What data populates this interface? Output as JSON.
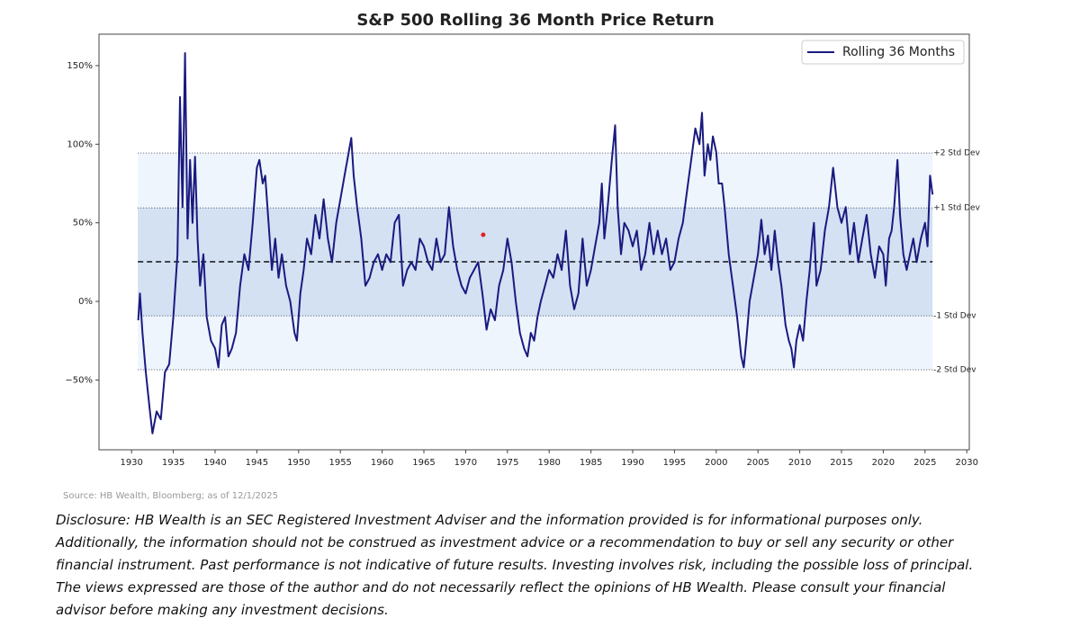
{
  "chart_data": {
    "type": "line",
    "title": "S&P 500 Rolling 36 Month Price Return",
    "x": [
      1930.8,
      1931.0,
      1931.3,
      1931.7,
      1932.2,
      1932.5,
      1933.0,
      1933.5,
      1934.0,
      1934.5,
      1935.0,
      1935.5,
      1935.8,
      1936.1,
      1936.4,
      1936.7,
      1937.0,
      1937.3,
      1937.6,
      1937.9,
      1938.2,
      1938.6,
      1939.0,
      1939.5,
      1940.0,
      1940.4,
      1940.8,
      1941.2,
      1941.6,
      1942.0,
      1942.5,
      1943.0,
      1943.5,
      1944.0,
      1944.5,
      1945.0,
      1945.3,
      1945.7,
      1946.0,
      1946.4,
      1946.8,
      1947.2,
      1947.6,
      1948.0,
      1948.5,
      1949.0,
      1949.5,
      1949.8,
      1950.2,
      1950.6,
      1951.0,
      1951.5,
      1952.0,
      1952.5,
      1953.0,
      1953.5,
      1954.0,
      1954.5,
      1955.0,
      1955.5,
      1956.0,
      1956.3,
      1956.6,
      1957.0,
      1957.5,
      1958.0,
      1958.5,
      1959.0,
      1959.5,
      1960.0,
      1960.5,
      1961.0,
      1961.5,
      1962.0,
      1962.5,
      1963.0,
      1963.5,
      1964.0,
      1964.5,
      1965.0,
      1965.5,
      1966.0,
      1966.5,
      1967.0,
      1967.5,
      1968.0,
      1968.5,
      1969.0,
      1969.5,
      1970.0,
      1970.5,
      1971.0,
      1971.5,
      1972.0,
      1972.5,
      1973.0,
      1973.5,
      1974.0,
      1974.5,
      1975.0,
      1975.5,
      1976.0,
      1976.5,
      1977.0,
      1977.4,
      1977.8,
      1978.2,
      1978.6,
      1979.0,
      1979.5,
      1980.0,
      1980.5,
      1981.0,
      1981.5,
      1982.0,
      1982.5,
      1983.0,
      1983.5,
      1984.0,
      1984.5,
      1985.0,
      1985.5,
      1986.0,
      1986.3,
      1986.6,
      1987.0,
      1987.5,
      1987.9,
      1988.2,
      1988.6,
      1989.0,
      1989.5,
      1990.0,
      1990.5,
      1991.0,
      1991.5,
      1992.0,
      1992.5,
      1993.0,
      1993.5,
      1994.0,
      1994.5,
      1995.0,
      1995.5,
      1996.0,
      1996.5,
      1997.0,
      1997.5,
      1998.0,
      1998.3,
      1998.6,
      1999.0,
      1999.3,
      1999.6,
      2000.0,
      2000.3,
      2000.7,
      2001.0,
      2001.5,
      2002.0,
      2002.5,
      2003.0,
      2003.3,
      2003.6,
      2004.0,
      2004.5,
      2005.0,
      2005.4,
      2005.8,
      2006.2,
      2006.6,
      2007.0,
      2007.4,
      2007.8,
      2008.3,
      2008.7,
      2009.0,
      2009.3,
      2009.6,
      2010.0,
      2010.4,
      2010.8,
      2011.2,
      2011.5,
      2011.7,
      2012.0,
      2012.5,
      2013.0,
      2013.5,
      2014.0,
      2014.5,
      2015.0,
      2015.5,
      2016.0,
      2016.5,
      2017.0,
      2017.5,
      2018.0,
      2018.5,
      2019.0,
      2019.5,
      2020.0,
      2020.3,
      2020.7,
      2021.0,
      2021.3,
      2021.7,
      2022.0,
      2022.4,
      2022.8,
      2023.2,
      2023.6,
      2024.0,
      2024.5,
      2025.0,
      2025.3,
      2025.6,
      2025.9
    ],
    "series": [
      {
        "name": "Rolling 36 Months",
        "color": "#1a1a80",
        "values": [
          -12,
          5,
          -20,
          -45,
          -70,
          -84,
          -70,
          -75,
          -45,
          -40,
          -10,
          30,
          130,
          60,
          158,
          40,
          90,
          50,
          92,
          40,
          10,
          30,
          -10,
          -25,
          -30,
          -42,
          -15,
          -10,
          -35,
          -30,
          -20,
          10,
          30,
          20,
          50,
          85,
          90,
          75,
          80,
          50,
          20,
          40,
          15,
          30,
          10,
          0,
          -20,
          -25,
          5,
          20,
          40,
          30,
          55,
          40,
          65,
          40,
          25,
          50,
          65,
          80,
          95,
          104,
          80,
          60,
          40,
          10,
          15,
          25,
          30,
          20,
          30,
          25,
          50,
          55,
          10,
          20,
          25,
          20,
          40,
          35,
          25,
          20,
          40,
          25,
          30,
          60,
          35,
          20,
          10,
          5,
          15,
          20,
          25,
          5,
          -18,
          -5,
          -12,
          10,
          20,
          40,
          25,
          0,
          -20,
          -30,
          -35,
          -20,
          -25,
          -10,
          0,
          10,
          20,
          15,
          30,
          20,
          45,
          10,
          -5,
          5,
          40,
          10,
          20,
          35,
          50,
          75,
          40,
          60,
          90,
          112,
          60,
          30,
          50,
          45,
          35,
          45,
          20,
          30,
          50,
          30,
          45,
          30,
          40,
          20,
          25,
          40,
          50,
          70,
          90,
          110,
          100,
          120,
          80,
          100,
          90,
          105,
          95,
          75,
          75,
          60,
          30,
          10,
          -10,
          -35,
          -42,
          -25,
          0,
          15,
          30,
          52,
          30,
          42,
          20,
          45,
          25,
          10,
          -15,
          -25,
          -30,
          -42,
          -25,
          -15,
          -25,
          0,
          20,
          40,
          50,
          10,
          20,
          45,
          60,
          85,
          60,
          50,
          60,
          30,
          50,
          25,
          40,
          55,
          30,
          15,
          35,
          30,
          10,
          40,
          45,
          60,
          90,
          55,
          30,
          20,
          30,
          40,
          25,
          40,
          50,
          35,
          80,
          68
        ]
      }
    ],
    "xlim": [
      1926.1,
      2030.3
    ],
    "ylim": [
      -94.4,
      170
    ],
    "xticks": [
      1930,
      1935,
      1940,
      1945,
      1950,
      1955,
      1960,
      1965,
      1970,
      1975,
      1980,
      1985,
      1990,
      1995,
      2000,
      2005,
      2010,
      2015,
      2020,
      2025,
      2030
    ],
    "yticks": [
      {
        "value": -50,
        "label": "−50%"
      },
      {
        "value": 0,
        "label": "0%"
      },
      {
        "value": 50,
        "label": "50%"
      },
      {
        "value": 100,
        "label": "100%"
      },
      {
        "value": 150,
        "label": "150%"
      }
    ],
    "mean": 25.2,
    "band_x": [
      1930.75,
      2025.9
    ],
    "band_colors": [
      "#eef5fd",
      "#d3e1f3"
    ],
    "reference_lines": [
      {
        "value": 94.4,
        "label": "+2 Std Dev"
      },
      {
        "value": 59.5,
        "label": "+1 Std Dev"
      },
      {
        "value": -9.2,
        "label": "-1 Std Dev"
      },
      {
        "value": -43.5,
        "label": "-2 Std Dev"
      }
    ],
    "highlight": {
      "x": 1972.1,
      "y": 42.4,
      "color": "#e02020"
    },
    "legend": "upper right"
  },
  "source": "Source: HB Wealth, Bloomberg; as of 12/1/2025",
  "disclosure": [
    "Disclosure: HB Wealth is an SEC Registered Investment Adviser and the information provided is for informational purposes only.",
    "Additionally, the information should not be construed as investment advice or a recommendation to buy or sell any security or other",
    "financial instrument. Past performance is not indicative of future results. Investing involves risk, including the possible loss of principal.",
    "The views expressed are those of the author and do not necessarily reflect the opinions of HB Wealth. Please consult your financial",
    "advisor before making any investment decisions."
  ]
}
